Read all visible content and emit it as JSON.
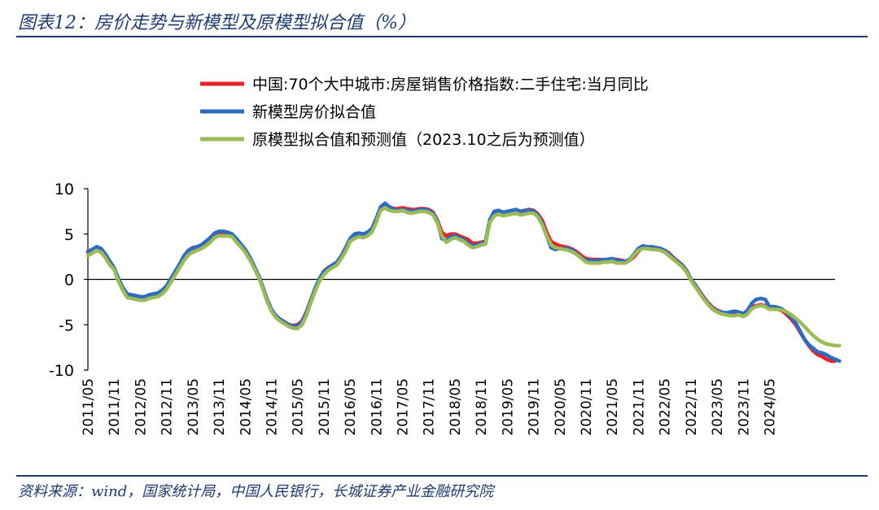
{
  "title": "图表12：房价走势与新模型及原模型拟合值（%）",
  "source": "资料来源：wind，国家统计局，中国人民银行，长城证券产业金融研究院",
  "chart_data": {
    "type": "line",
    "title": "图表12：房价走势与新模型及原模型拟合值（%）",
    "xlabel": "",
    "ylabel": "",
    "ylim": [
      -10,
      10
    ],
    "yticks": [
      10,
      5,
      0,
      -5,
      -10
    ],
    "x_tick_labels": [
      "2011/05",
      "2011/11",
      "2012/05",
      "2012/11",
      "2013/05",
      "2013/11",
      "2014/05",
      "2014/11",
      "2015/05",
      "2015/11",
      "2016/05",
      "2016/11",
      "2017/05",
      "2017/11",
      "2018/05",
      "2018/11",
      "2019/05",
      "2019/11",
      "2020/05",
      "2020/11",
      "2021/05",
      "2021/11",
      "2022/05",
      "2022/11",
      "2023/05",
      "2023/11",
      "2024/05"
    ],
    "x_start": "2011/05",
    "frequency": "monthly",
    "series": [
      {
        "name": "中国:70个大中城市:房屋销售价格指数:二手住宅:当月同比",
        "color": "#e8232a",
        "values": [
          3.0,
          3.2,
          3.4,
          3.2,
          2.6,
          1.8,
          1.2,
          0.0,
          -1.0,
          -1.7,
          -1.8,
          -1.9,
          -2.0,
          -2.0,
          -1.8,
          -1.7,
          -1.6,
          -1.3,
          -0.8,
          0.0,
          0.8,
          1.6,
          2.4,
          3.0,
          3.3,
          3.5,
          3.7,
          4.0,
          4.4,
          4.9,
          5.1,
          5.1,
          5.1,
          5.0,
          4.4,
          3.8,
          3.3,
          2.5,
          1.5,
          0.5,
          -0.8,
          -2.2,
          -3.3,
          -4.0,
          -4.4,
          -4.7,
          -5.0,
          -5.1,
          -5.0,
          -4.6,
          -3.6,
          -2.3,
          -1.0,
          0.0,
          0.8,
          1.3,
          1.5,
          1.8,
          2.5,
          3.3,
          4.4,
          4.8,
          5.0,
          4.9,
          5.1,
          5.5,
          6.6,
          7.9,
          8.1,
          8.0,
          7.8,
          7.8,
          7.9,
          7.8,
          7.7,
          7.7,
          7.8,
          7.8,
          7.7,
          7.4,
          6.5,
          5.2,
          4.8,
          5.0,
          5.0,
          4.8,
          4.6,
          4.4,
          4.0,
          4.0,
          4.1,
          4.2,
          6.5,
          7.2,
          7.4,
          7.3,
          7.4,
          7.5,
          7.6,
          7.5,
          7.6,
          7.7,
          7.6,
          7.2,
          6.5,
          5.2,
          4.2,
          3.9,
          3.7,
          3.6,
          3.5,
          3.3,
          3.0,
          2.6,
          2.3,
          2.2,
          2.2,
          2.2,
          2.1,
          2.1,
          2.2,
          2.2,
          2.1,
          2.0,
          2.1,
          2.5,
          3.1,
          3.5,
          3.5,
          3.5,
          3.5,
          3.4,
          3.2,
          2.9,
          2.4,
          2.0,
          1.6,
          1.0,
          0.0,
          -0.6,
          -1.3,
          -2.0,
          -2.6,
          -3.1,
          -3.4,
          -3.6,
          -3.8,
          -3.8,
          -3.8,
          -3.8,
          -3.9,
          -3.5,
          -3.0,
          -2.9,
          -2.8,
          -2.9,
          -3.2,
          -3.2,
          -3.3,
          -3.5,
          -3.9,
          -4.4,
          -5.0,
          -5.8,
          -6.6,
          -7.3,
          -7.9,
          -8.3,
          -8.5,
          -8.8,
          -9.0,
          -9.0
        ]
      },
      {
        "name": "新模型房价拟合值",
        "color": "#2f6bbf",
        "values": [
          3.1,
          3.3,
          3.6,
          3.4,
          2.8,
          2.0,
          1.3,
          0.1,
          -0.9,
          -1.6,
          -1.7,
          -1.8,
          -1.9,
          -1.9,
          -1.7,
          -1.6,
          -1.5,
          -1.2,
          -0.7,
          0.1,
          0.9,
          1.7,
          2.6,
          3.2,
          3.5,
          3.6,
          3.8,
          4.2,
          4.6,
          5.1,
          5.3,
          5.3,
          5.2,
          5.0,
          4.5,
          3.9,
          3.3,
          2.5,
          1.5,
          0.5,
          -0.8,
          -2.2,
          -3.3,
          -4.0,
          -4.4,
          -4.7,
          -5.0,
          -5.2,
          -5.1,
          -4.7,
          -3.7,
          -2.4,
          -1.0,
          0.1,
          0.9,
          1.3,
          1.6,
          1.9,
          2.6,
          3.5,
          4.5,
          5.0,
          5.1,
          5.0,
          5.2,
          5.6,
          6.7,
          8.0,
          8.4,
          8.0,
          7.7,
          7.6,
          7.7,
          7.6,
          7.5,
          7.6,
          7.7,
          7.7,
          7.6,
          7.3,
          6.4,
          4.5,
          4.3,
          4.7,
          4.8,
          4.6,
          4.4,
          4.0,
          3.7,
          3.8,
          4.0,
          4.1,
          6.6,
          7.5,
          7.6,
          7.4,
          7.5,
          7.6,
          7.7,
          7.5,
          7.6,
          7.6,
          7.5,
          7.1,
          6.2,
          4.8,
          3.5,
          3.3,
          3.4,
          3.4,
          3.4,
          3.2,
          2.8,
          2.4,
          2.1,
          2.1,
          2.1,
          2.1,
          2.2,
          2.2,
          2.3,
          2.1,
          2.0,
          2.0,
          2.2,
          2.8,
          3.4,
          3.7,
          3.6,
          3.6,
          3.5,
          3.4,
          3.2,
          2.8,
          2.3,
          1.9,
          1.6,
          1.0,
          0.0,
          -0.6,
          -1.4,
          -2.1,
          -2.7,
          -3.2,
          -3.5,
          -3.6,
          -3.7,
          -3.6,
          -3.5,
          -3.6,
          -3.8,
          -3.4,
          -2.6,
          -2.2,
          -2.1,
          -2.2,
          -3.0,
          -3.0,
          -3.1,
          -3.3,
          -3.7,
          -4.2,
          -4.8,
          -5.7,
          -6.6,
          -7.2,
          -7.6,
          -8.0,
          -8.1,
          -8.3,
          -8.6,
          -8.8,
          -9.0
        ]
      },
      {
        "name": "原模型拟合值和预测值（2023.10之后为预测值）",
        "color": "#9bbb59",
        "values": [
          2.6,
          2.9,
          3.2,
          3.0,
          2.4,
          1.6,
          1.1,
          -0.2,
          -1.2,
          -2.0,
          -2.1,
          -2.2,
          -2.3,
          -2.3,
          -2.1,
          -2.0,
          -1.9,
          -1.6,
          -1.1,
          -0.3,
          0.5,
          1.3,
          2.1,
          2.7,
          3.0,
          3.2,
          3.4,
          3.7,
          4.1,
          4.6,
          4.8,
          4.8,
          4.8,
          4.7,
          4.1,
          3.6,
          3.0,
          2.2,
          1.3,
          0.3,
          -1.0,
          -2.4,
          -3.5,
          -4.2,
          -4.6,
          -4.9,
          -5.2,
          -5.4,
          -5.4,
          -5.0,
          -4.0,
          -2.6,
          -1.3,
          -0.2,
          0.5,
          1.0,
          1.3,
          1.6,
          2.3,
          3.1,
          4.2,
          4.5,
          4.7,
          4.6,
          4.8,
          5.2,
          6.3,
          7.6,
          7.9,
          7.6,
          7.5,
          7.5,
          7.6,
          7.4,
          7.3,
          7.4,
          7.5,
          7.5,
          7.4,
          7.1,
          6.2,
          4.8,
          4.1,
          4.4,
          4.6,
          4.4,
          4.2,
          3.8,
          3.5,
          3.6,
          3.8,
          3.9,
          6.3,
          7.0,
          7.2,
          7.0,
          7.1,
          7.2,
          7.3,
          7.1,
          7.2,
          7.3,
          7.3,
          6.9,
          6.0,
          4.8,
          3.8,
          3.5,
          3.4,
          3.3,
          3.2,
          3.0,
          2.7,
          2.3,
          1.9,
          1.8,
          1.8,
          1.8,
          1.9,
          1.9,
          2.0,
          1.8,
          1.8,
          1.8,
          2.1,
          2.7,
          3.2,
          3.4,
          3.4,
          3.3,
          3.3,
          3.2,
          3.0,
          2.6,
          2.2,
          1.8,
          1.4,
          0.8,
          -0.1,
          -0.8,
          -1.5,
          -2.2,
          -2.8,
          -3.3,
          -3.6,
          -3.8,
          -3.9,
          -4.0,
          -4.0,
          -3.9,
          -4.1,
          -3.8,
          -3.2,
          -3.0,
          -2.9,
          -3.0,
          -3.3,
          -3.3,
          -3.3,
          -3.4,
          -3.6,
          -3.9,
          -4.3,
          -4.7,
          -5.2,
          -5.7,
          -6.2,
          -6.6,
          -6.9,
          -7.1,
          -7.2,
          -7.3,
          -7.3
        ]
      }
    ]
  }
}
